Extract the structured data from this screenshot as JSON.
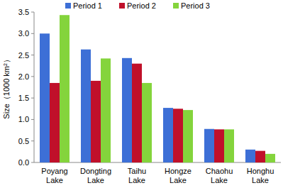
{
  "chart_data": {
    "type": "bar",
    "y_label": "Size（1000 km²）",
    "categories": [
      "Poyang Lake",
      "Dongting Lake",
      "Taihu Lake",
      "Hongze Lake",
      "Chaohu Lake",
      "Honghu Lake"
    ],
    "series": [
      {
        "name": "Period 1",
        "color": "#3d6fd6",
        "values": [
          3.0,
          2.63,
          2.43,
          1.27,
          0.78,
          0.3
        ]
      },
      {
        "name": "Period 2",
        "color": "#c0102a",
        "values": [
          1.85,
          1.9,
          2.3,
          1.25,
          0.77,
          0.27
        ]
      },
      {
        "name": "Period 3",
        "color": "#84d43c",
        "values": [
          3.43,
          2.42,
          1.85,
          1.22,
          0.77,
          0.2
        ]
      }
    ],
    "ylim": [
      0,
      3.5
    ],
    "yticks": [
      {
        "value": 0,
        "label": "0.0"
      },
      0.5,
      {
        "value": 1,
        "label": "1.0"
      },
      1.5,
      {
        "value": 2,
        "label": "2.0"
      },
      2.5,
      {
        "value": 3,
        "label": "3.0"
      },
      3.5
    ],
    "grid": false,
    "legend": "top"
  }
}
